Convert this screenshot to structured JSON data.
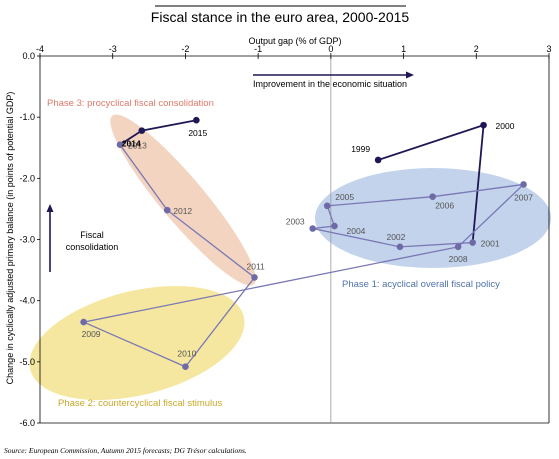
{
  "chart_data": {
    "type": "scatter",
    "title": "Fiscal stance in the euro area, 2000-2015",
    "xlabel": "Output gap (% of GDP)",
    "ylabel": "Change in cyclically adjusted primary balance (in points of potential GDP)",
    "xlim": [
      -4,
      3
    ],
    "ylim": [
      -6,
      0
    ],
    "x_ticks": [
      "-4",
      "-3",
      "-2",
      "-1",
      "0",
      "1",
      "2",
      "3"
    ],
    "y_ticks": [
      "0.0",
      "-1.0",
      "-2.0",
      "-3.0",
      "-4.0",
      "-5.0",
      "-6.0"
    ],
    "grid": false,
    "points": [
      {
        "year": "1999",
        "x": 0.65,
        "y": -1.7
      },
      {
        "year": "2000",
        "x": 2.1,
        "y": -1.13
      },
      {
        "year": "2001",
        "x": 1.95,
        "y": -3.05
      },
      {
        "year": "2002",
        "x": 0.95,
        "y": -3.12
      },
      {
        "year": "2003",
        "x": -0.25,
        "y": -2.82
      },
      {
        "year": "2004",
        "x": 0.05,
        "y": -2.78
      },
      {
        "year": "2005",
        "x": -0.05,
        "y": -2.45
      },
      {
        "year": "2006",
        "x": 1.4,
        "y": -2.3
      },
      {
        "year": "2007",
        "x": 2.65,
        "y": -2.1
      },
      {
        "year": "2008",
        "x": 1.75,
        "y": -3.12
      },
      {
        "year": "2009",
        "x": -3.4,
        "y": -4.35
      },
      {
        "year": "2010",
        "x": -2.0,
        "y": -5.08
      },
      {
        "year": "2011",
        "x": -1.05,
        "y": -3.62
      },
      {
        "year": "2012",
        "x": -2.25,
        "y": -2.52
      },
      {
        "year": "2013",
        "x": -2.9,
        "y": -1.45
      },
      {
        "year": "2014",
        "x": -2.6,
        "y": -1.22
      },
      {
        "year": "2015",
        "x": -1.85,
        "y": -1.05
      }
    ],
    "series": [
      {
        "name": "",
        "color": "#1f1654",
        "years": [
          "1999",
          "2000",
          "2001"
        ]
      },
      {
        "name": "",
        "color": "#7a78b4",
        "years": [
          "2001",
          "2002",
          "2003",
          "2004",
          "2005",
          "2006",
          "2007",
          "2008",
          "2009",
          "2010",
          "2011",
          "2012",
          "2013"
        ]
      },
      {
        "name": "",
        "color": "#1f1654",
        "years": [
          "2013",
          "2014",
          "2015"
        ]
      }
    ],
    "bold_labels": [
      "2014"
    ],
    "regions": [
      {
        "label": "Phase 1:  acyclical overall fiscal policy",
        "color": "#b8cbe9",
        "text_color": "#4f72a8"
      },
      {
        "label": "Phase 2: countercyclical fiscal stimulus",
        "color": "#f3e38f",
        "text_color": "#c9a82a"
      },
      {
        "label": "Phase 3: procyclical fiscal consolidation",
        "color": "#f1cdb5",
        "text_color": "#e07a6a"
      }
    ],
    "arrow_labels": {
      "improvement": "Improvement  in the economic situation",
      "consolidation_line1": "Fiscal",
      "consolidation_line2": "consolidation"
    },
    "source": "Source: European Commission, Autumn 2015 forecasts; DG Trésor calculations."
  }
}
